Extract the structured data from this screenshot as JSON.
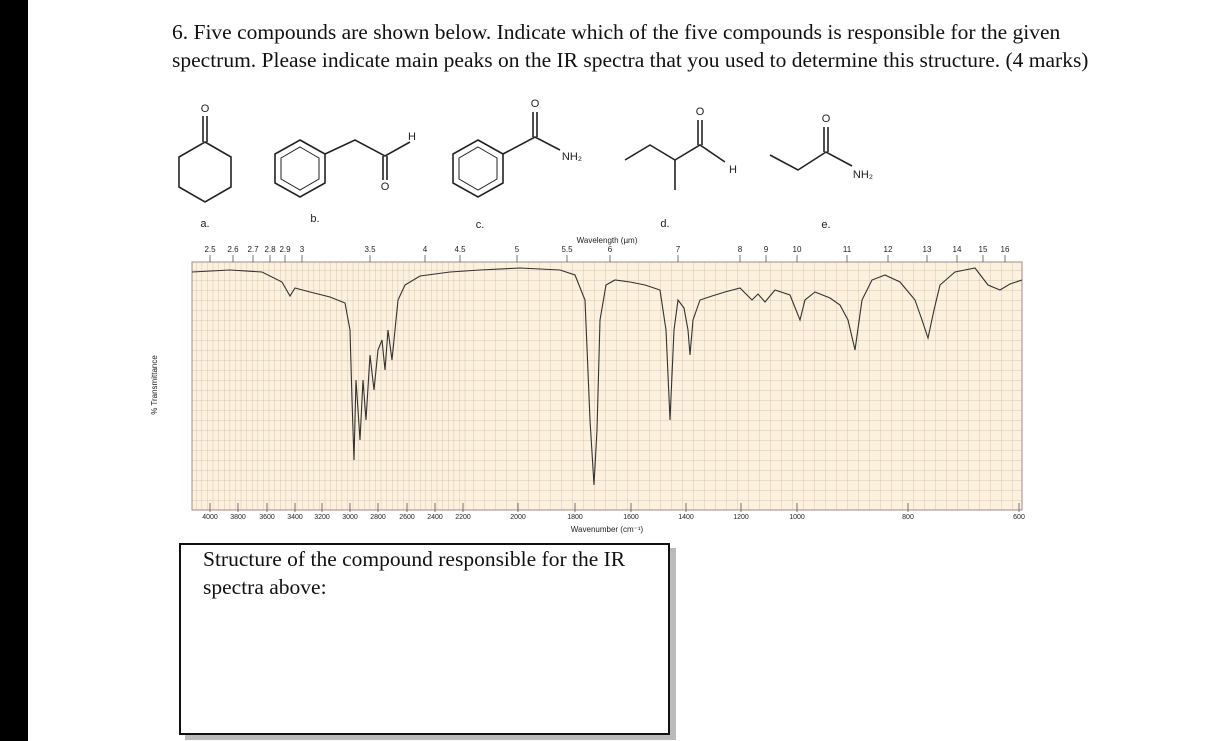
{
  "question": "6. Five compounds are shown below. Indicate which of the five compounds is responsible for the given spectrum. Please indicate main peaks on the IR spectra that you used to determine this structure. (4 marks)",
  "compounds": [
    {
      "label": "a.",
      "atoms": [
        "O"
      ]
    },
    {
      "label": "b.",
      "atoms": [
        "H",
        "O"
      ]
    },
    {
      "label": "c.",
      "atoms": [
        "O",
        "NH₂"
      ]
    },
    {
      "label": "d.",
      "atoms": [
        "O",
        "H"
      ]
    },
    {
      "label": "e.",
      "atoms": [
        "O",
        "NH₂"
      ]
    }
  ],
  "spectrum": {
    "wavelength_label": "Wavelength (µm)",
    "wavelength_ticks": [
      "2.5",
      "2.6",
      "2.7",
      "2.8",
      "2.9",
      "3",
      "3.5",
      "4",
      "4.5",
      "5",
      "5.5",
      "6",
      "7",
      "8",
      "9",
      "10",
      "11",
      "12",
      "13",
      "14",
      "15",
      "16"
    ],
    "wavenumber_label": "Wavenumber (cm⁻¹)",
    "wavenumber_ticks": [
      "4000",
      "3800",
      "3600",
      "3400",
      "3200",
      "3000",
      "2800",
      "2600",
      "2400",
      "2200",
      "2000",
      "1800",
      "1600",
      "1400",
      "1200",
      "1000",
      "800",
      "600"
    ],
    "y_label": "% Transmittance"
  },
  "answer_box": {
    "text": "Structure of the compound responsible for the IR spectra above:"
  }
}
